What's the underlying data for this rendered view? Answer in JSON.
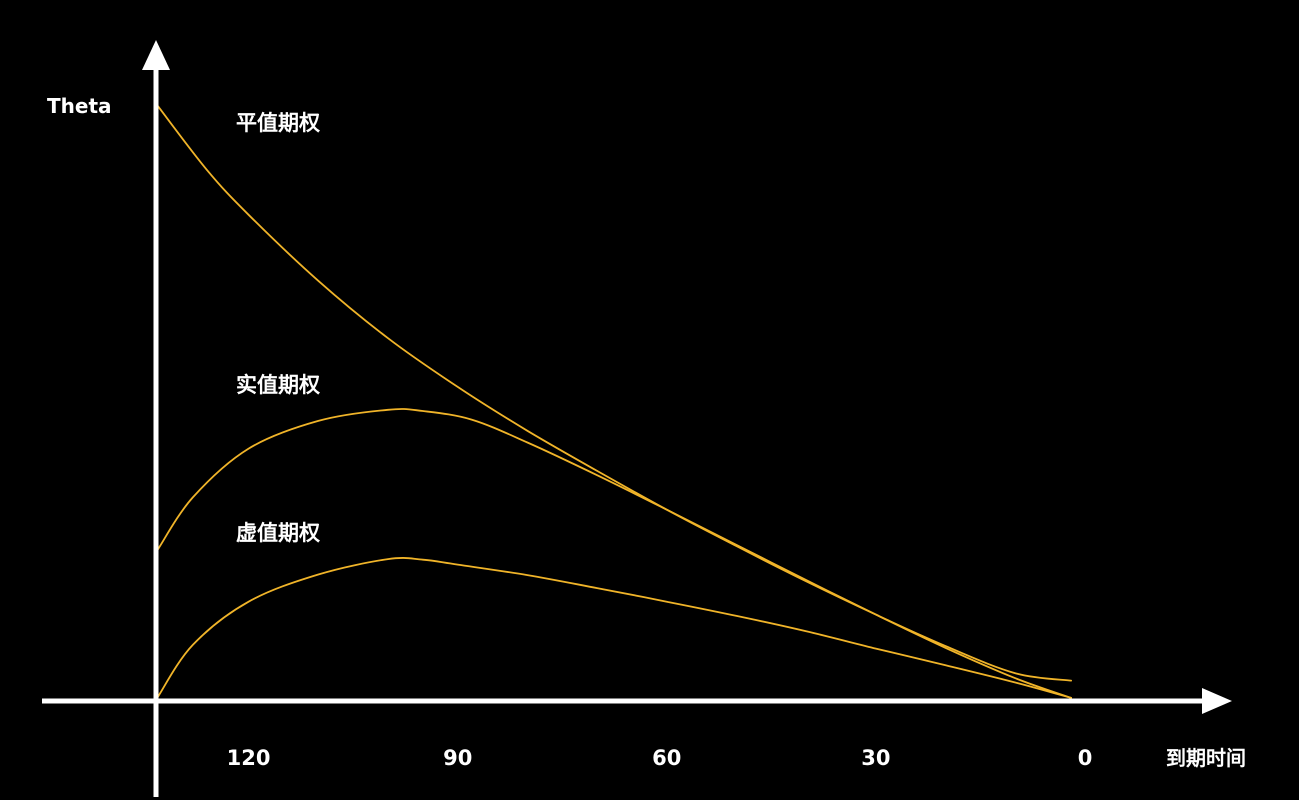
{
  "chart_data": {
    "type": "line",
    "title": "",
    "xlabel": "到期时间",
    "ylabel": "Theta",
    "x_reversed": true,
    "xlim": [
      133,
      0
    ],
    "ylim": [
      0,
      1
    ],
    "x_ticks": [
      "120",
      "90",
      "60",
      "30",
      "0"
    ],
    "x_tick_values": [
      120,
      90,
      60,
      30,
      0
    ],
    "grid": false,
    "line_color": "#f0b429",
    "series": [
      {
        "name": "平值期权",
        "x": [
          133,
          126,
          120,
          110,
          100,
          90,
          80,
          70,
          60,
          50,
          40,
          30,
          20,
          10,
          2
        ],
        "y": [
          0.964,
          0.861,
          0.788,
          0.681,
          0.588,
          0.509,
          0.438,
          0.373,
          0.31,
          0.251,
          0.194,
          0.14,
          0.089,
          0.045,
          0.033
        ]
      },
      {
        "name": "实值期权",
        "x": [
          133,
          128,
          120,
          110,
          100,
          95,
          88,
          80,
          70,
          60,
          50,
          40,
          30,
          20,
          10,
          2
        ],
        "y": [
          0.246,
          0.33,
          0.409,
          0.454,
          0.472,
          0.47,
          0.456,
          0.419,
          0.366,
          0.31,
          0.253,
          0.196,
          0.14,
          0.086,
          0.037,
          0.005
        ]
      },
      {
        "name": "虚值期权",
        "x": [
          133,
          128,
          120,
          110,
          100,
          95,
          90,
          80,
          70,
          60,
          50,
          40,
          30,
          20,
          10,
          2
        ],
        "y": [
          0.007,
          0.091,
          0.161,
          0.205,
          0.23,
          0.229,
          0.221,
          0.204,
          0.183,
          0.161,
          0.138,
          0.113,
          0.085,
          0.058,
          0.03,
          0.005
        ]
      }
    ]
  }
}
